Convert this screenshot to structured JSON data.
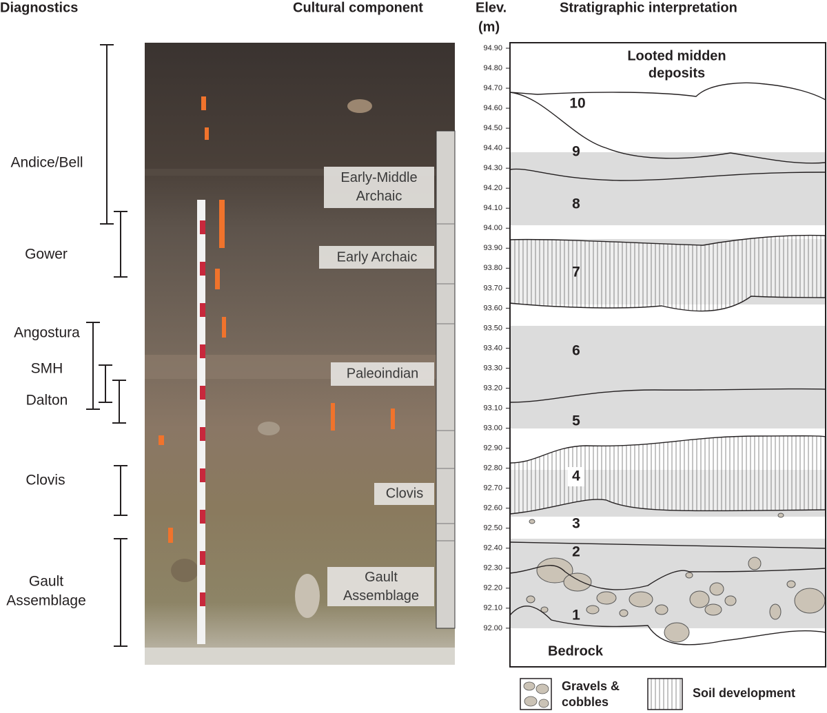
{
  "headers": {
    "diagnostics": "Diagnostics",
    "cultural_component": "Cultural component",
    "elevation": [
      "Elev.",
      "(m)"
    ],
    "stratigraphy": "Stratigraphic interpretation"
  },
  "diagnostics": [
    {
      "lines": [
        "Andice/Bell"
      ]
    },
    {
      "lines": [
        "Gower"
      ]
    },
    {
      "lines": [
        "Angostura"
      ]
    },
    {
      "lines": [
        "SMH"
      ]
    },
    {
      "lines": [
        "Dalton"
      ]
    },
    {
      "lines": [
        "Clovis"
      ]
    },
    {
      "lines": [
        "Gault",
        "Assemblage"
      ]
    }
  ],
  "cultural_components": [
    {
      "lines": [
        "Early-Middle",
        "Archaic"
      ]
    },
    {
      "lines": [
        "Early Archaic"
      ]
    },
    {
      "lines": [
        "Paleoindian"
      ]
    },
    {
      "lines": [
        "Clovis"
      ]
    },
    {
      "lines": [
        "Gault",
        "Assemblage"
      ]
    }
  ],
  "elevation_ticks": [
    "94.90",
    "94.80",
    "94.70",
    "94.60",
    "94.50",
    "94.40",
    "94.30",
    "94.20",
    "94.10",
    "94.00",
    "93.90",
    "93.80",
    "93.70",
    "93.60",
    "93.50",
    "93.40",
    "93.30",
    "93.20",
    "93.10",
    "93.00",
    "92.90",
    "92.80",
    "92.70",
    "92.60",
    "92.50",
    "92.40",
    "92.30",
    "92.20",
    "92.10",
    "92.00"
  ],
  "stratigraphy": {
    "top_label": [
      "Looted midden",
      "deposits"
    ],
    "bottom_label": "Bedrock",
    "units": [
      "10",
      "9",
      "8",
      "7",
      "6",
      "5",
      "4",
      "3",
      "2",
      "1"
    ]
  },
  "legend": [
    {
      "lines": [
        "Gravels &",
        "cobbles"
      ]
    },
    {
      "lines": [
        "Soil development"
      ]
    }
  ]
}
